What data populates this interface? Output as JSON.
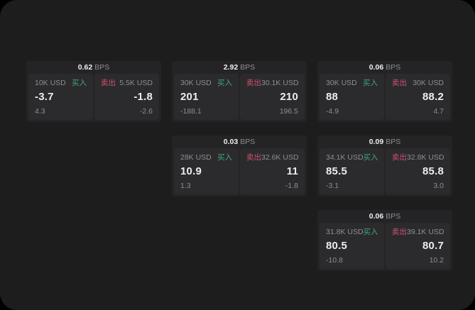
{
  "theme": {
    "page_bg": "#000000",
    "surface_bg": "#1d1d1e",
    "card_bg": "#242426",
    "panel_bg": "#2b2b2d",
    "text_primary": "#ededee",
    "text_secondary": "#8e8e92",
    "buy_color": "#3fa875",
    "sell_color": "#d24f6e"
  },
  "labels": {
    "bps_unit": "BPS",
    "buy": "买入",
    "sell": "卖出"
  },
  "cards": [
    {
      "bps": "0.62",
      "buy": {
        "amount": "10K USD",
        "value": "-3.7",
        "sub": "4.3"
      },
      "sell": {
        "amount": "5.5K USD",
        "value": "-1.8",
        "sub": "-2.6"
      }
    },
    {
      "bps": "2.92",
      "buy": {
        "amount": "30K USD",
        "value": "201",
        "sub": "-188.1"
      },
      "sell": {
        "amount": "30.1K USD",
        "value": "210",
        "sub": "196.5"
      }
    },
    {
      "bps": "0.06",
      "buy": {
        "amount": "30K USD",
        "value": "88",
        "sub": "-4.9"
      },
      "sell": {
        "amount": "30K USD",
        "value": "88.2",
        "sub": "4.7"
      }
    },
    {
      "bps": "0.03",
      "buy": {
        "amount": "28K USD",
        "value": "10.9",
        "sub": "1.3"
      },
      "sell": {
        "amount": "32.6K USD",
        "value": "11",
        "sub": "-1.8"
      }
    },
    {
      "bps": "0.09",
      "buy": {
        "amount": "34.1K USD",
        "value": "85.5",
        "sub": "-3.1"
      },
      "sell": {
        "amount": "32.8K USD",
        "value": "85.8",
        "sub": "3.0"
      }
    },
    {
      "bps": "0.06",
      "buy": {
        "amount": "31.8K USD",
        "value": "80.5",
        "sub": "-10.8"
      },
      "sell": {
        "amount": "39.1K USD",
        "value": "80.7",
        "sub": "10.2"
      }
    }
  ]
}
